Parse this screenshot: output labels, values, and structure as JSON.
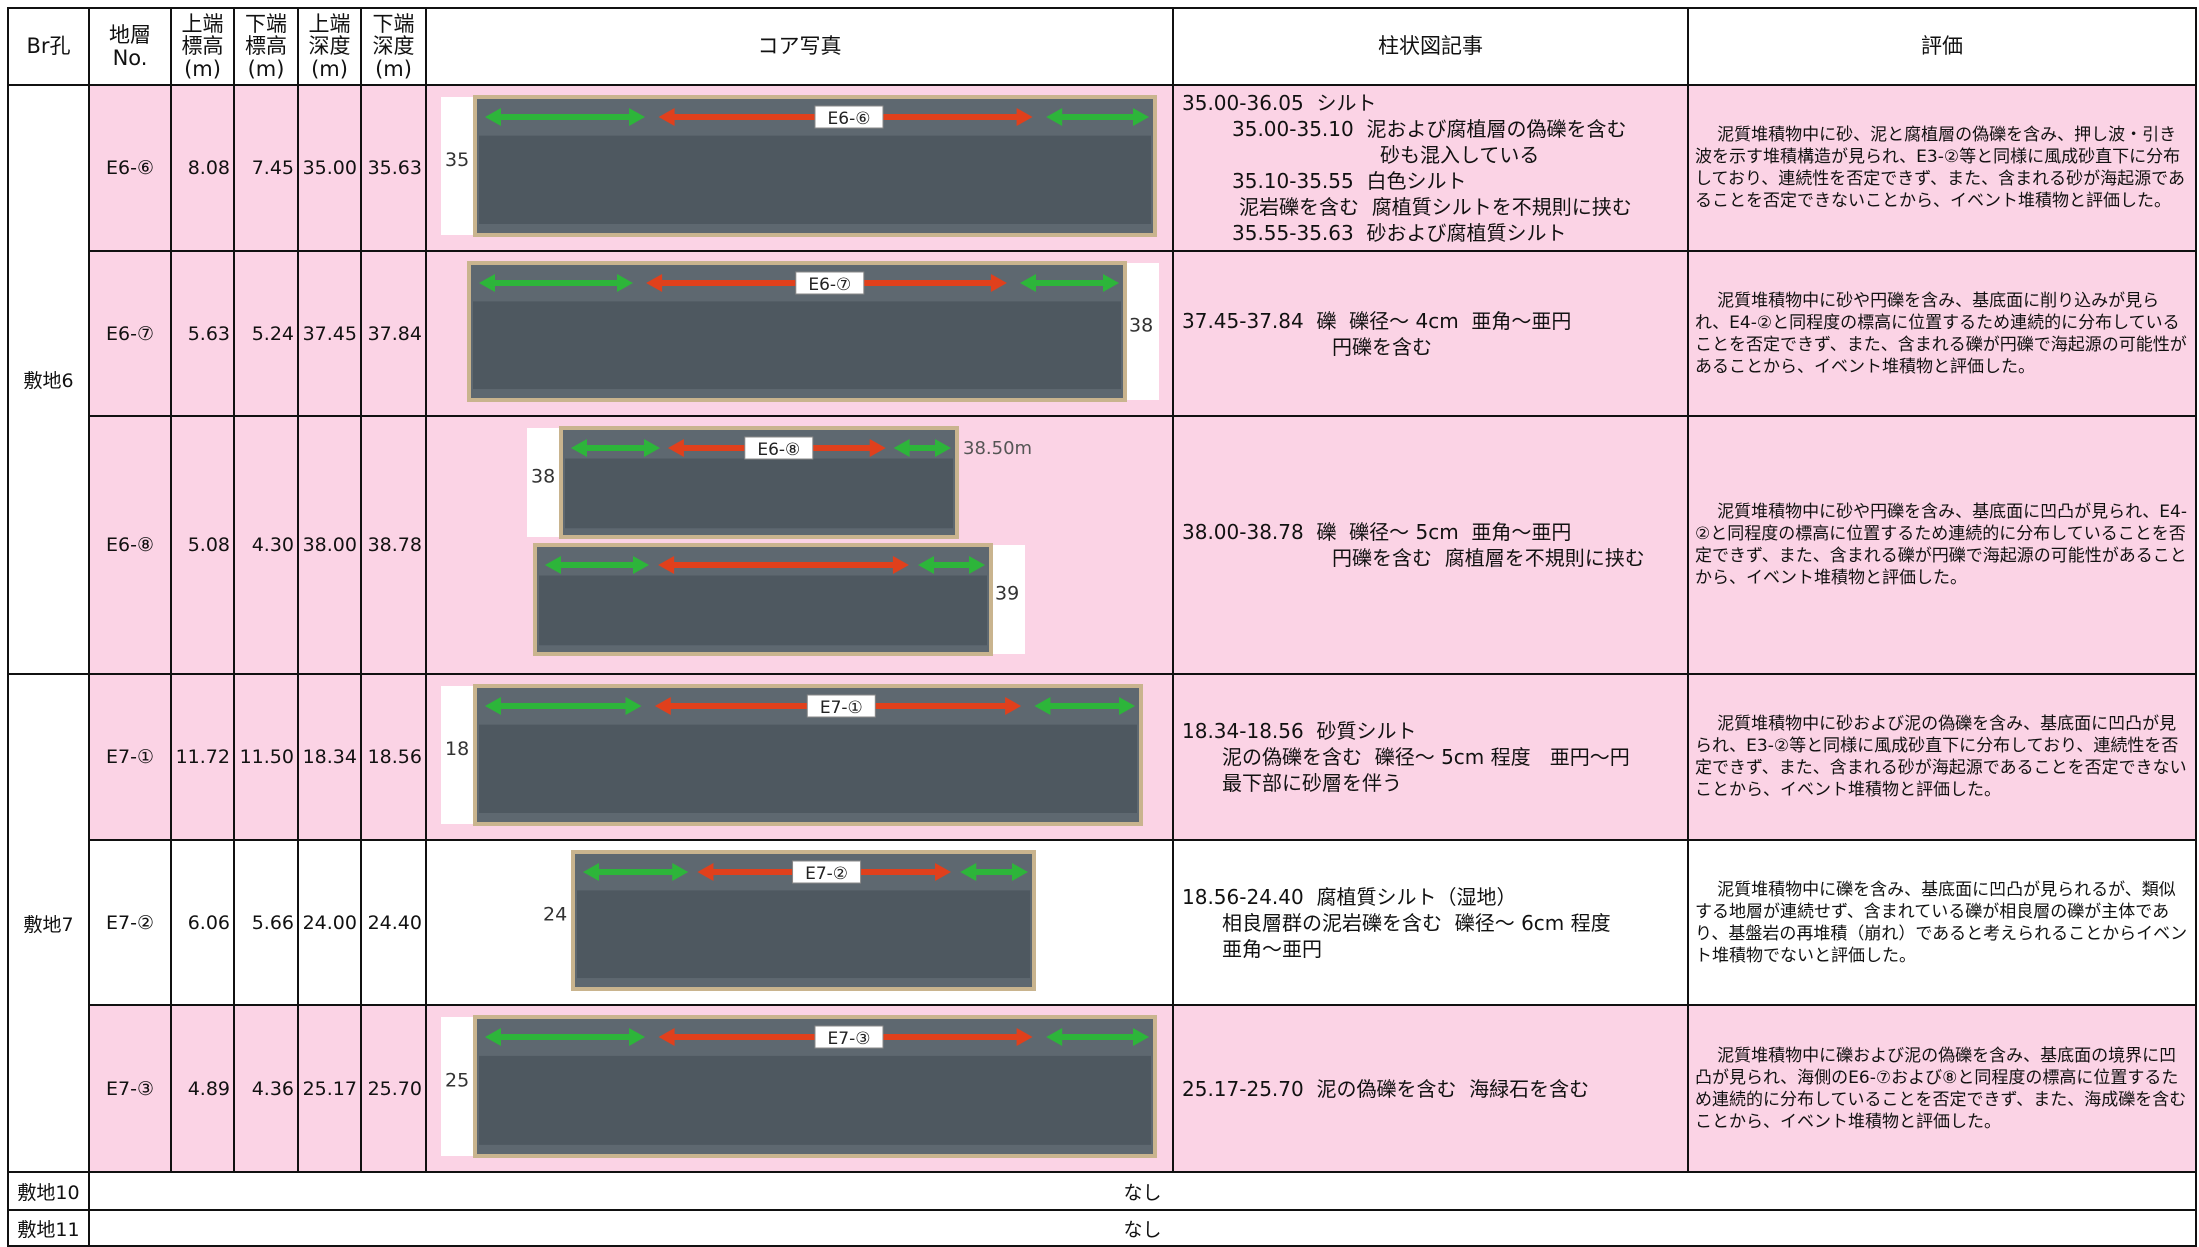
{
  "table": {
    "header": [
      "Br孔",
      "地層\nNo.",
      "上端\n標高\n(m)",
      "下端\n標高\n(m)",
      "上端\n深度\n(m)",
      "下端\n深度\n(m)",
      "コア写真",
      "柱状図記事",
      "評価"
    ],
    "sites": [
      {
        "name": "敷地6",
        "layers": [
          {
            "no": "E6-⑥",
            "top_elev": "8.08",
            "bottom_elev": "7.45",
            "top_depth": "35.00",
            "bottom_depth": "35.63",
            "photo": [
              {
                "label": "E6-⑥",
                "depth": "35"
              }
            ],
            "log": [
              "35.00-36.05  シルト",
              "35.00-35.10  泥および腐植層の偽礫を含む",
              "砂も混入している",
              "35.10-35.55  白色シルト",
              "泥岩礫を含む  腐植質シルトを不規則に挟む",
              "35.55-35.63  砂および腐植質シルト"
            ],
            "eval": "泥質堆積物中に砂、泥と腐植層の偽礫を含み、押し波・引き波を示す堆積構造が見られ、E3-②等と同様に風成砂直下に分布しており、連続性を否定できず、また、含まれる砂が海起源であることを否定できないことから、イベント堆積物と評価した。"
          },
          {
            "no": "E6-⑦",
            "top_elev": "5.63",
            "bottom_elev": "5.24",
            "top_depth": "37.45",
            "bottom_depth": "37.84",
            "photo": [
              {
                "label": "E6-⑦",
                "depth": "38"
              }
            ],
            "log": [
              "37.45-37.84  礫  礫径～ 4cm  亜角～亜円",
              "円礫を含む"
            ],
            "eval": "泥質堆積物中に砂や円礫を含み、基底面に削り込みが見られ、E4-②と同程度の標高に位置するため連続的に分布していることを否定できず、また、含まれる礫が円礫で海起源の可能性があることから、イベント堆積物と評価した。"
          },
          {
            "no": "E6-⑧",
            "top_elev": "5.08",
            "bottom_elev": "4.30",
            "top_depth": "38.00",
            "bottom_depth": "38.78",
            "photo": [
              {
                "label": "E6-⑧",
                "depth": "38",
                "end": "38.50m"
              },
              {
                "depth": "39"
              }
            ],
            "log": [
              "38.00-38.78  礫  礫径～ 5cm  亜角～亜円",
              "円礫を含む  腐植層を不規則に挟む"
            ],
            "eval": "泥質堆積物中に砂や円礫を含み、基底面に凹凸が見られ、E4-②と同程度の標高に位置するため連続的に分布していることを否定できず、また、含まれる礫が円礫で海起源の可能性があることから、イベント堆積物と評価した。"
          }
        ]
      },
      {
        "name": "敷地7",
        "layers": [
          {
            "no": "E7-①",
            "top_elev": "11.72",
            "bottom_elev": "11.50",
            "top_depth": "18.34",
            "bottom_depth": "18.56",
            "photo": [
              {
                "label": "E7-①",
                "depth": "18"
              }
            ],
            "log": [
              "18.34-18.56  砂質シルト",
              "泥の偽礫を含む  礫径～ 5cm 程度   亜円～円",
              "最下部に砂層を伴う"
            ],
            "eval": "泥質堆積物中に砂および泥の偽礫を含み、基底面に凹凸が見られ、E3-②等と同様に風成砂直下に分布しており、連続性を否定できず、また、含まれる砂が海起源であることを否定できないことから、イベント堆積物と評価した。"
          },
          {
            "no": "E7-②",
            "top_elev": "6.06",
            "bottom_elev": "5.66",
            "top_depth": "24.00",
            "bottom_depth": "24.40",
            "photo": [
              {
                "label": "E7-②",
                "depth": "24"
              }
            ],
            "log": [
              "18.56-24.40  腐植質シルト（湿地）",
              "相良層群の泥岩礫を含む  礫径～ 6cm 程度",
              "亜角～亜円"
            ],
            "eval": "泥質堆積物中に礫を含み、基底面に凹凸が見られるが、類似する地層が連続せず、含まれている礫が相良層の礫が主体であり、基盤岩の再堆積（崩れ）であると考えられることからイベント堆積物でないと評価した。"
          },
          {
            "no": "E7-③",
            "top_elev": "4.89",
            "bottom_elev": "4.36",
            "top_depth": "25.17",
            "bottom_depth": "25.70",
            "photo": [
              {
                "label": "E7-③",
                "depth": "25"
              }
            ],
            "log": [
              "25.17-25.70  泥の偽礫を含む  海緑石を含む"
            ],
            "eval": "泥質堆積物中に礫および泥の偽礫を含み、基底面の境界に凹凸が見られ、海側のE6-⑦および⑧と同程度の標高に位置するため連続的に分布していることを否定できず、また、海成礫を含むことから、イベント堆積物と評価した。"
          }
        ]
      }
    ],
    "others": [
      {
        "name": "敷地10",
        "note": "なし"
      },
      {
        "name": "敷地11",
        "note": "なし"
      }
    ]
  }
}
